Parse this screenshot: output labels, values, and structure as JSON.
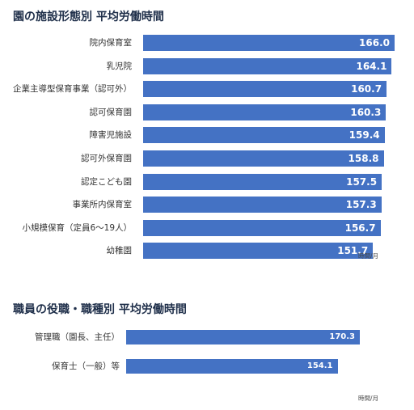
{
  "charts": [
    {
      "title": "園の施設形態別 平均労働時間",
      "unit": "時間/月",
      "chart_data": {
        "type": "bar",
        "orientation": "horizontal",
        "title": "園の施設形態別 平均労働時間",
        "categories": [
          "院内保育室",
          "乳児院",
          "企業主導型保育事業（認可外）",
          "認可保育園",
          "障害児施設",
          "認可外保育園",
          "認定こども園",
          "事業所内保育室",
          "小規模保育（定員6～19人）",
          "幼稚園"
        ],
        "values": [
          166.0,
          164.1,
          160.7,
          160.3,
          159.4,
          158.8,
          157.5,
          157.3,
          156.7,
          151.7
        ],
        "value_labels": [
          "166.0",
          "164.1",
          "160.7",
          "160.3",
          "159.4",
          "158.8",
          "157.5",
          "157.3",
          "156.7",
          "151.7"
        ],
        "xlabel": "時間/月",
        "ylabel": "",
        "grid": false,
        "colors": [
          "#4472c4"
        ]
      }
    },
    {
      "title": "職員の役職・職種別 平均労働時間",
      "unit": "時間/月",
      "chart_data": {
        "type": "bar",
        "orientation": "horizontal",
        "title": "職員の役職・職種別 平均労働時間",
        "categories": [
          "管理職（園長、主任）",
          "保育士（一般）等"
        ],
        "values": [
          170.3,
          154.1
        ],
        "value_labels": [
          "170.3",
          "154.1"
        ],
        "xlabel": "時間/月",
        "ylabel": "",
        "grid": false,
        "colors": [
          "#4472c4"
        ]
      }
    }
  ]
}
